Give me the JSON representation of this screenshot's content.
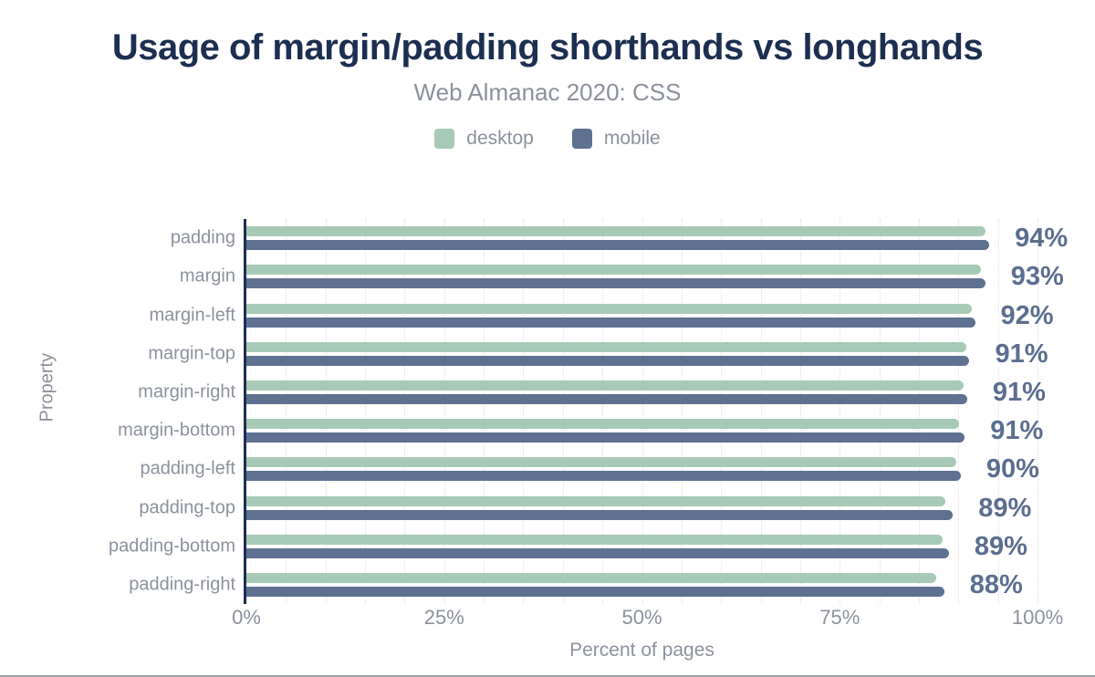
{
  "chart_data": {
    "type": "bar",
    "orientation": "horizontal",
    "title": "Usage of margin/padding shorthands vs longhands",
    "subtitle": "Web Almanac 2020: CSS",
    "xlabel": "Percent of pages",
    "ylabel": "Property",
    "xlim": [
      0,
      100
    ],
    "x_tick_labels": [
      "0%",
      "25%",
      "50%",
      "75%",
      "100%"
    ],
    "x_tick_values": [
      0,
      25,
      50,
      75,
      100
    ],
    "grid": "vertical dotted every 5%",
    "legend_position": "top",
    "categories": [
      "padding",
      "margin",
      "margin-left",
      "margin-top",
      "margin-right",
      "margin-bottom",
      "padding-left",
      "padding-top",
      "padding-bottom",
      "padding-right"
    ],
    "series": [
      {
        "name": "desktop",
        "color": "#a6cab5",
        "values": [
          93.4,
          92.9,
          91.7,
          91.0,
          90.7,
          90.1,
          89.7,
          88.4,
          88.0,
          87.2
        ]
      },
      {
        "name": "mobile",
        "color": "#5e7191",
        "values": [
          93.9,
          93.4,
          92.1,
          91.4,
          91.1,
          90.8,
          90.3,
          89.3,
          88.8,
          88.2
        ]
      }
    ],
    "value_labels": [
      "94%",
      "93%",
      "92%",
      "91%",
      "91%",
      "91%",
      "90%",
      "89%",
      "89%",
      "88%"
    ]
  },
  "colors": {
    "title": "#1c2f51",
    "axis_line": "#1c2f51",
    "muted_text": "#8b919c",
    "value_label": "#5b6e8f",
    "gridline": "#dcdfe3",
    "bottom_border": "#9ba1a9"
  }
}
